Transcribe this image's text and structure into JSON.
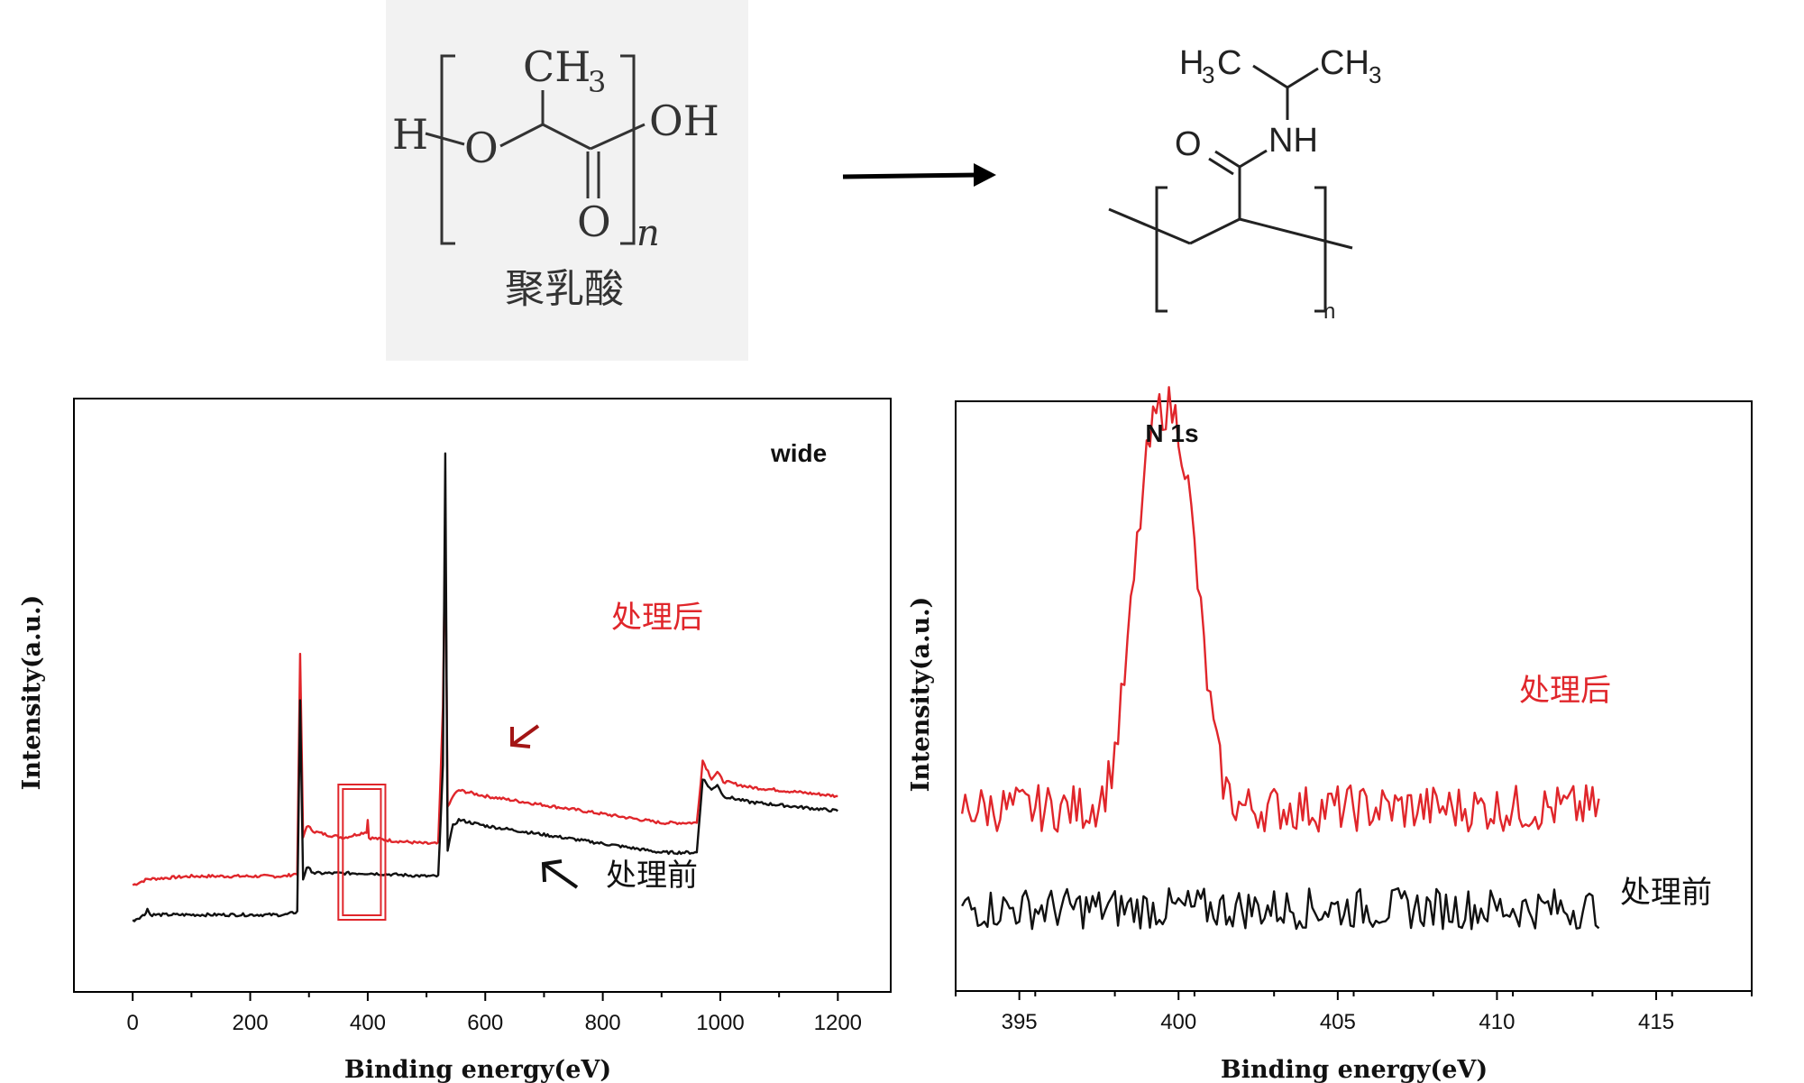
{
  "structures": {
    "pla": {
      "name": "聚乳酸",
      "h_label": "H",
      "o_label": "O",
      "carbonyl_o": "O",
      "oh_label": "OH",
      "ch3_label": "CH",
      "ch3_sub": "3",
      "n_label": "n"
    },
    "pnipam": {
      "h3c_h": "H",
      "h3c_sub": "3",
      "h3c_c": "C",
      "ch3_ch": "CH",
      "ch3_sub": "3",
      "o_label": "O",
      "nh_label": "NH",
      "n_label": "n"
    }
  },
  "chart_data": [
    {
      "type": "line",
      "title": "wide",
      "xlabel": "Binding energy(eV)",
      "ylabel": "Intensity(a.u.)",
      "xlim": [
        -100,
        1290
      ],
      "ylim": [
        0,
        100
      ],
      "xticks": [
        0,
        200,
        400,
        600,
        800,
        1000,
        1200
      ],
      "grid": false,
      "highlight_box_x": [
        350,
        430
      ],
      "series": [
        {
          "name": "处理后",
          "color": "#e0262b",
          "x": [
            0,
            25,
            100,
            150,
            200,
            260,
            280,
            285,
            290,
            296,
            310,
            330,
            360,
            398,
            400,
            402,
            440,
            500,
            520,
            528,
            532,
            536,
            545,
            555,
            600,
            700,
            800,
            900,
            960,
            970,
            985,
            995,
            1005,
            1050,
            1100,
            1150,
            1200
          ],
          "y": [
            18,
            19,
            19.5,
            19.5,
            19.5,
            19.5,
            20,
            57,
            26,
            28,
            27,
            26.5,
            26,
            27,
            29,
            26,
            25.5,
            25,
            25,
            48,
            78,
            31,
            33,
            34,
            33,
            31.5,
            30,
            28.5,
            28.5,
            39,
            36,
            37,
            35.5,
            34.5,
            34,
            33.5,
            33
          ]
        },
        {
          "name": "处理前",
          "color": "#111111",
          "x": [
            0,
            20,
            25,
            30,
            100,
            200,
            260,
            280,
            285,
            290,
            296,
            310,
            400,
            500,
            520,
            528,
            532,
            536,
            545,
            555,
            600,
            700,
            800,
            900,
            960,
            970,
            985,
            995,
            1005,
            1050,
            1100,
            1150,
            1200
          ],
          "y": [
            12,
            13,
            14,
            13,
            13,
            13,
            13,
            13.5,
            49,
            19,
            21,
            20,
            20,
            19.5,
            19.5,
            38,
            91,
            24,
            28,
            29,
            28,
            26.5,
            25,
            23.5,
            23.5,
            36,
            34,
            35,
            33,
            32,
            31.5,
            31,
            30.5
          ]
        }
      ],
      "labels": [
        {
          "text": "处理后",
          "color": "#e0262b"
        },
        {
          "text": "处理前",
          "color": "#111111"
        }
      ]
    },
    {
      "type": "line",
      "title": "N 1s",
      "xlabel": "Binding energy(eV)",
      "ylabel": "Intensity(a.u.)",
      "xlim": [
        393,
        418
      ],
      "ylim": [
        0,
        100
      ],
      "xticks": [
        395,
        400,
        405,
        410,
        415
      ],
      "grid": false,
      "series": [
        {
          "name": "处理后",
          "color": "#e0262b",
          "peak_center": 399.6,
          "peak_height": 68,
          "baseline": 31,
          "noise": 4
        },
        {
          "name": "处理前",
          "color": "#111111",
          "baseline": 14,
          "noise": 3.5
        }
      ],
      "labels": [
        {
          "text": "处理后",
          "color": "#e0262b"
        },
        {
          "text": "处理前",
          "color": "#111111"
        }
      ]
    }
  ]
}
